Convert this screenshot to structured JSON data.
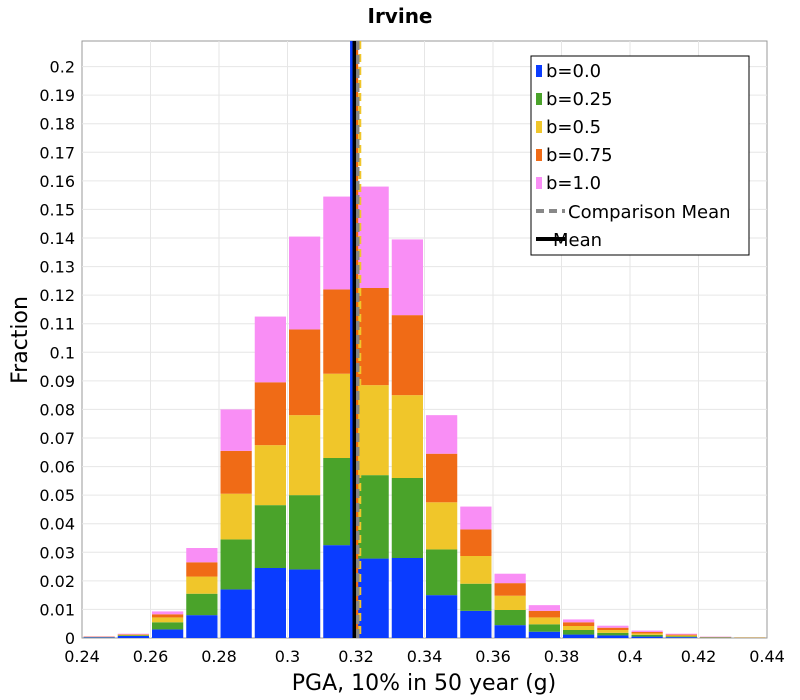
{
  "chart_data": {
    "type": "bar",
    "stacked": true,
    "title": "Irvine",
    "xlabel": "PGA, 10% in 50 year (g)",
    "ylabel": "Fraction",
    "xlim": [
      0.24,
      0.44
    ],
    "ylim": [
      0,
      0.21
    ],
    "bin_width": 0.01,
    "x_ticks": [
      "0.24",
      "0.26",
      "0.28",
      "0.3",
      "0.32",
      "0.34",
      "0.36",
      "0.38",
      "0.4",
      "0.42",
      "0.44"
    ],
    "y_ticks": [
      "0",
      "0.01",
      "0.02",
      "0.03",
      "0.04",
      "0.05",
      "0.06",
      "0.07",
      "0.08",
      "0.09",
      "0.1",
      "0.11",
      "0.12",
      "0.13",
      "0.14",
      "0.15",
      "0.16",
      "0.17",
      "0.18",
      "0.19",
      "0.2"
    ],
    "grid": true,
    "legend_position": "top-right",
    "bins": [
      0.24,
      0.25,
      0.26,
      0.27,
      0.28,
      0.29,
      0.3,
      0.31,
      0.32,
      0.33,
      0.34,
      0.35,
      0.36,
      0.37,
      0.38,
      0.39,
      0.4,
      0.41,
      0.42,
      0.43
    ],
    "series": [
      {
        "name": "b=0.0",
        "color": "#0a3cff",
        "cumulative": [
          0.0002,
          0.0007,
          0.003,
          0.008,
          0.017,
          0.0245,
          0.024,
          0.0325,
          0.0278,
          0.028,
          0.015,
          0.0095,
          0.0045,
          0.0022,
          0.0012,
          0.0009,
          0.0005,
          0.0003,
          0.0001,
          0.0
        ]
      },
      {
        "name": "b=0.25",
        "color": "#4aa32a",
        "cumulative": [
          0.0003,
          0.0009,
          0.0055,
          0.0155,
          0.0345,
          0.0465,
          0.05,
          0.063,
          0.057,
          0.056,
          0.031,
          0.019,
          0.0098,
          0.0048,
          0.0028,
          0.0018,
          0.0011,
          0.0006,
          0.0002,
          0.0001
        ]
      },
      {
        "name": "b=0.5",
        "color": "#f0c62a",
        "cumulative": [
          0.0004,
          0.0011,
          0.0072,
          0.0215,
          0.0505,
          0.0675,
          0.078,
          0.0925,
          0.0885,
          0.085,
          0.0475,
          0.0287,
          0.0148,
          0.0072,
          0.0042,
          0.0028,
          0.0016,
          0.0009,
          0.0003,
          0.0001
        ]
      },
      {
        "name": "b=0.75",
        "color": "#f06b16",
        "cumulative": [
          0.0005,
          0.0013,
          0.0083,
          0.0265,
          0.0655,
          0.0895,
          0.108,
          0.122,
          0.1225,
          0.113,
          0.0645,
          0.038,
          0.0192,
          0.0095,
          0.0055,
          0.0036,
          0.0021,
          0.0012,
          0.0004,
          0.0002
        ]
      },
      {
        "name": "b=1.0",
        "color": "#f98ef5",
        "cumulative": [
          0.0006,
          0.0015,
          0.0093,
          0.0315,
          0.08,
          0.1125,
          0.1405,
          0.1545,
          0.158,
          0.1395,
          0.078,
          0.046,
          0.0225,
          0.0115,
          0.0065,
          0.0043,
          0.0026,
          0.0015,
          0.0005,
          0.0002
        ]
      }
    ],
    "reference_lines": [
      {
        "name": "Comparison Mean",
        "style": "dashed",
        "color": "#888888",
        "x": 0.3205
      },
      {
        "name": "Mean",
        "style": "solid",
        "color": "#000000",
        "x": 0.3195
      }
    ],
    "extra_lines": [
      {
        "color": "#0a3cff",
        "x": 0.3187,
        "style": "solid"
      },
      {
        "color": "#f06b16",
        "x": 0.3202,
        "style": "solid"
      },
      {
        "color": "#f0c62a",
        "x": 0.3211,
        "style": "dashed"
      }
    ]
  }
}
